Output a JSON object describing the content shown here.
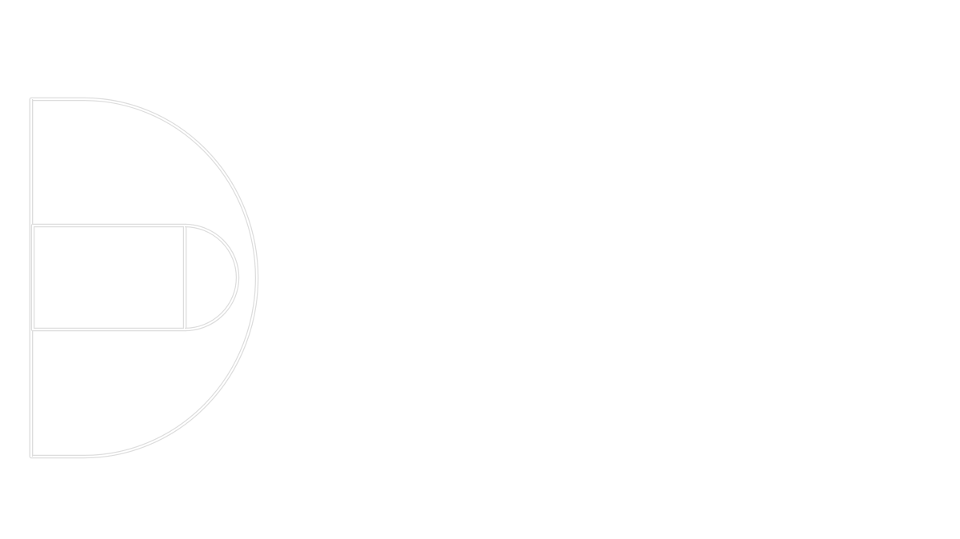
{
  "diagram": {
    "kind": "basketball-half-court-outline",
    "line_color": "#dddddd",
    "inner_line_color": "#ffffff",
    "background": "#ffffff",
    "labels": []
  }
}
